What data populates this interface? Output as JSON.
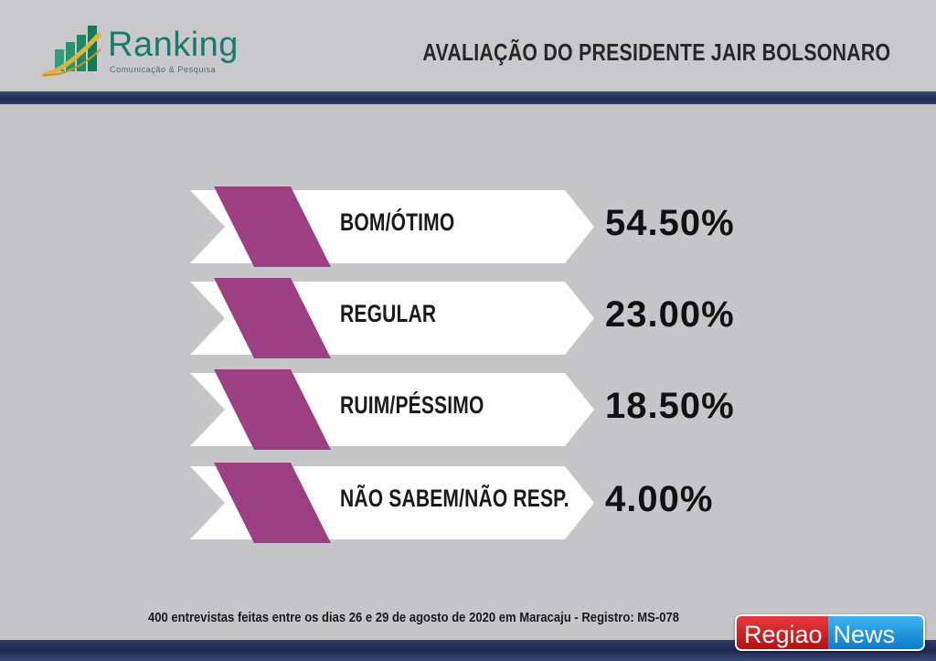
{
  "header": {
    "logo_name": "Ranking",
    "logo_subtitle": "Comunicação & Pesquisa",
    "title": "AVALIAÇÃO DO PRESIDENTE JAIR BOLSONARO"
  },
  "chart_data": {
    "type": "table",
    "title": "AVALIAÇÃO DO PRESIDENTE JAIR BOLSONARO",
    "categories": [
      "BOM/ÓTIMO",
      "REGULAR",
      "RUIM/PÉSSIMO",
      "NÃO SABEM/NÃO RESP."
    ],
    "values": [
      54.5,
      23.0,
      18.5,
      4.0
    ],
    "value_labels": [
      "54.50%",
      "23.00%",
      "18.50%",
      "4.00%"
    ],
    "unit": "%"
  },
  "rows": [
    {
      "label": "BOM/ÓTIMO",
      "value": "54.50%"
    },
    {
      "label": "REGULAR",
      "value": "23.00%"
    },
    {
      "label": "RUIM/PÉSSIMO",
      "value": "18.50%"
    },
    {
      "label": "NÃO SABEM/NÃO RESP.",
      "value": "4.00%"
    }
  ],
  "footer": {
    "note": "400 entrevistas feitas entre os  dias 26 e 29 de agosto de 2020 em Maracaju - Registro:  MS-078"
  },
  "watermark": {
    "part1": "Regiao",
    "part2": "News"
  },
  "colors": {
    "accent_purple": "#9c3f83",
    "logo_green": "#167a6c",
    "bar_navy": "#1f2a52",
    "background": "#c6c6c8"
  },
  "icons": {
    "logo": "bar-chart-swoosh-icon"
  }
}
